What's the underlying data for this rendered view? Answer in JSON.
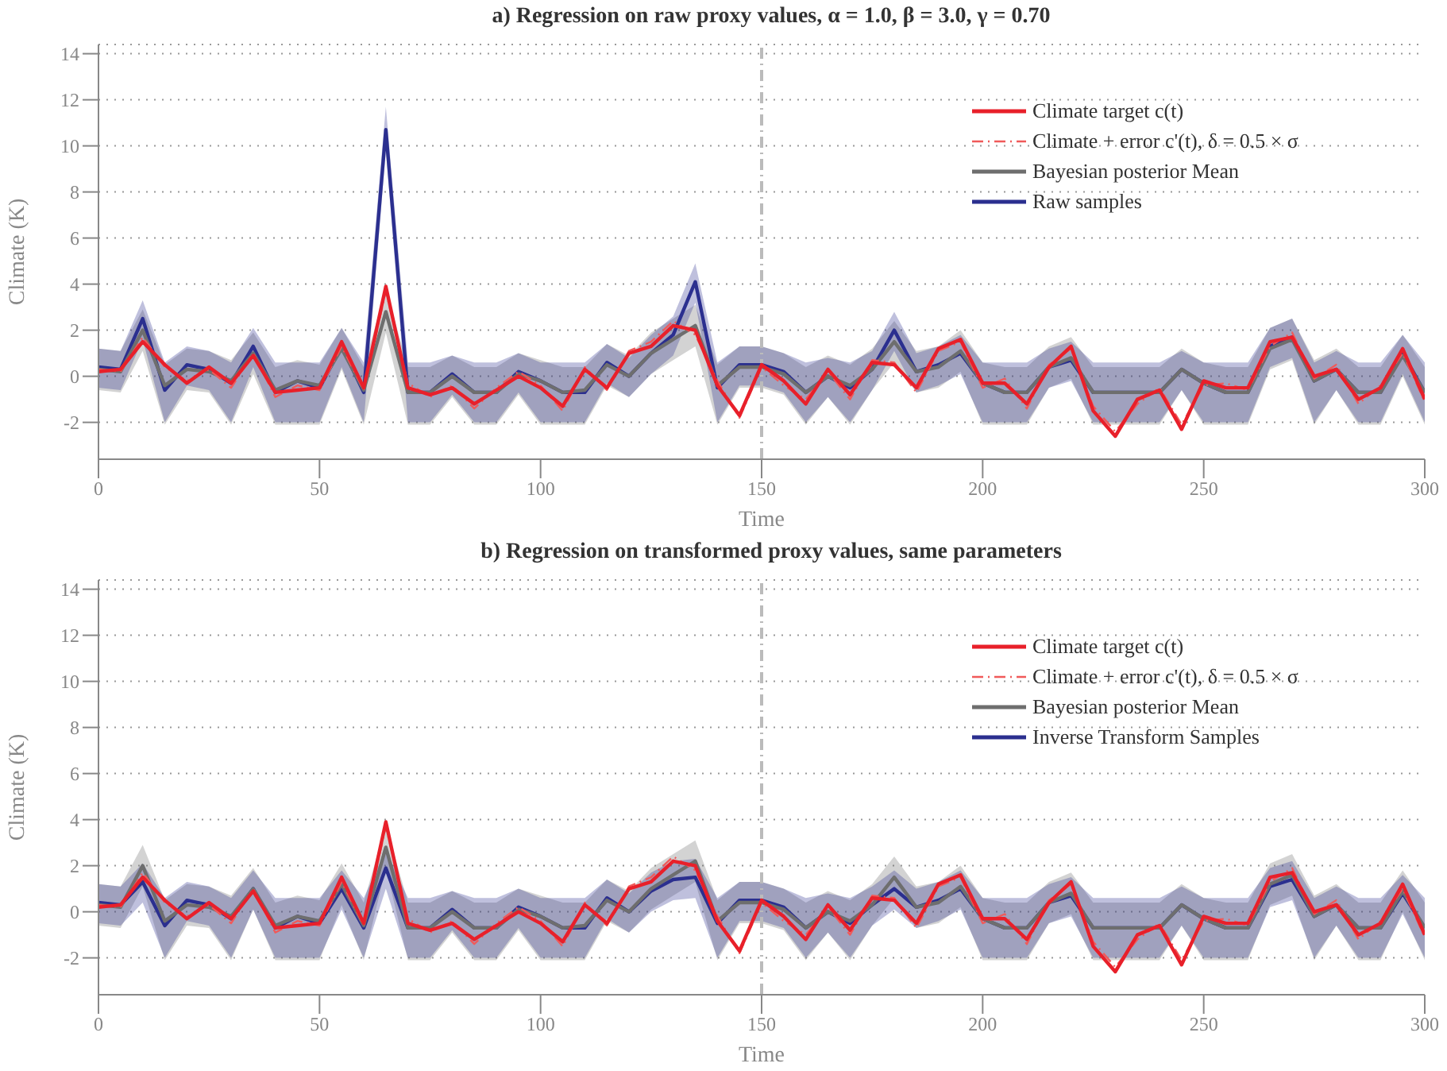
{
  "chart_data": [
    {
      "type": "line",
      "title": "a) Regression on raw proxy values, α = 1.0, β = 3.0, γ = 0.70",
      "xlabel": "Time",
      "ylabel": "Climate (K)",
      "x": [
        0,
        5,
        10,
        15,
        20,
        25,
        30,
        35,
        40,
        45,
        50,
        55,
        60,
        65,
        70,
        75,
        80,
        85,
        90,
        95,
        100,
        105,
        110,
        115,
        120,
        125,
        130,
        135,
        140,
        145,
        150,
        155,
        160,
        165,
        170,
        175,
        180,
        185,
        190,
        195,
        200,
        205,
        210,
        215,
        220,
        225,
        230,
        235,
        240,
        245,
        250,
        255,
        260,
        265,
        270,
        275,
        280,
        285,
        290,
        295,
        300
      ],
      "xlim": [
        0,
        300
      ],
      "xticks": [
        0,
        50,
        100,
        150,
        200,
        250,
        300
      ],
      "ylim": [
        -3.6,
        14.4
      ],
      "yticks": [
        -2,
        0,
        2,
        4,
        6,
        8,
        10,
        12,
        14
      ],
      "grid": "y",
      "legend": "top right",
      "ref_lines": [
        {
          "axis": "x",
          "value": 150,
          "color": "#bbbbbb",
          "line_style": "dashed"
        }
      ],
      "series": [
        {
          "name": "Climate target c(t)",
          "color": "#e8202a",
          "values": [
            0.2,
            0.3,
            1.5,
            0.5,
            -0.3,
            0.4,
            -0.3,
            0.9,
            -0.7,
            -0.6,
            -0.5,
            1.5,
            -0.5,
            3.9,
            -0.5,
            -0.8,
            -0.5,
            -1.2,
            -0.6,
            0,
            -0.5,
            -1.3,
            0.3,
            -0.5,
            1.0,
            1.3,
            2.2,
            2.0,
            -0.4,
            -1.7,
            0.5,
            -0.2,
            -1.2,
            0.3,
            -0.8,
            0.6,
            0.5,
            -0.5,
            1.2,
            1.6,
            -0.3,
            -0.3,
            -1.2,
            0.4,
            1.3,
            -1.5,
            -2.6,
            -1.0,
            -0.6,
            -2.3,
            -0.2,
            -0.5,
            -0.5,
            1.5,
            1.7,
            0.0,
            0.3,
            -1.0,
            -0.5,
            1.2,
            -1.0
          ]
        },
        {
          "name": "Climate + error c'(t),  δ = 0.5 × σ",
          "color": "#f05a5a",
          "line_style": "dashed",
          "values": [
            0.3,
            0.2,
            1.7,
            0.4,
            -0.2,
            0.3,
            -0.5,
            1.0,
            -0.9,
            -0.4,
            -0.6,
            1.3,
            -0.6,
            3.7,
            -0.3,
            -0.9,
            -0.4,
            -1.4,
            -0.5,
            0.2,
            -0.4,
            -1.5,
            0.4,
            -0.6,
            1.1,
            1.5,
            2.4,
            1.8,
            -0.2,
            -1.8,
            0.4,
            -0.4,
            -1.0,
            0.2,
            -1.0,
            0.7,
            0.6,
            -0.7,
            1.1,
            1.5,
            -0.5,
            -0.1,
            -1.4,
            0.5,
            1.2,
            -1.3,
            -2.4,
            -1.2,
            -0.5,
            -2.1,
            -0.4,
            -0.3,
            -0.6,
            1.3,
            1.9,
            -0.1,
            0.5,
            -1.2,
            -0.4,
            1.0,
            -1.1
          ]
        },
        {
          "name": "Bayesian posterior Mean",
          "color": "#6e6e6e",
          "values": [
            0.3,
            0.2,
            2.0,
            -0.4,
            0.3,
            0.2,
            -0.2,
            1.0,
            -0.6,
            -0.2,
            -0.4,
            1.2,
            -0.6,
            2.8,
            -0.7,
            -0.7,
            0,
            -0.7,
            -0.7,
            0.1,
            -0.2,
            -0.7,
            -0.6,
            0.5,
            0,
            1.0,
            1.6,
            2.2,
            -0.4,
            0.4,
            0.4,
            0.1,
            -0.7,
            0,
            -0.4,
            0.3,
            1.5,
            0.2,
            0.4,
            1.1,
            -0.3,
            -0.7,
            -0.7,
            0.4,
            0.8,
            -0.7,
            -0.7,
            -0.7,
            -0.7,
            0.3,
            -0.3,
            -0.7,
            -0.7,
            1.2,
            1.6,
            -0.2,
            0.3,
            -0.7,
            -0.7,
            0.9,
            -0.7
          ],
          "upper": [
            1.2,
            1.1,
            2.9,
            0.5,
            1.2,
            1.1,
            0.7,
            1.9,
            0.4,
            0.7,
            0.5,
            2.1,
            0.4,
            3.8,
            0.4,
            0.4,
            0.9,
            0.4,
            0.4,
            1.0,
            0.7,
            0.4,
            0.4,
            1.4,
            0.9,
            1.9,
            2.5,
            3.1,
            0.5,
            1.3,
            1.3,
            1.0,
            0.4,
            0.9,
            0.5,
            1.2,
            2.4,
            1.1,
            1.3,
            2.0,
            0.6,
            0.4,
            0.4,
            1.3,
            1.7,
            0.4,
            0.4,
            0.4,
            0.4,
            1.2,
            0.6,
            0.4,
            0.4,
            2.1,
            2.5,
            0.7,
            1.2,
            0.4,
            0.4,
            1.8,
            0.4
          ],
          "lower": [
            -0.6,
            -0.7,
            1.1,
            -2.1,
            -0.6,
            -0.7,
            -2.1,
            0.1,
            -2.1,
            -2.1,
            -2.1,
            0.3,
            -2.1,
            1.9,
            -2.1,
            -2.1,
            -0.9,
            -2.1,
            -2.1,
            -0.8,
            -2.1,
            -2.1,
            -2.1,
            -0.4,
            -0.9,
            0.1,
            0.7,
            1.3,
            -2.1,
            -0.5,
            -0.5,
            -0.8,
            -2.1,
            -0.9,
            -2.1,
            -0.6,
            0.6,
            -0.7,
            -0.5,
            0.2,
            -2.1,
            -2.1,
            -2.1,
            -0.5,
            -0.1,
            -2.1,
            -2.1,
            -2.1,
            -2.1,
            -0.6,
            -2.1,
            -2.1,
            -2.1,
            0.3,
            0.7,
            -2.1,
            -0.6,
            -2.1,
            -2.1,
            0.0,
            -2.1
          ]
        },
        {
          "name": "Raw samples",
          "color": "#2b2f8f",
          "values": [
            0.4,
            0.3,
            2.5,
            -0.6,
            0.5,
            0.3,
            -0.3,
            1.3,
            -0.7,
            -0.2,
            -0.5,
            1.3,
            -0.7,
            10.7,
            -0.7,
            -0.7,
            0.1,
            -0.7,
            -0.7,
            0.2,
            -0.2,
            -0.7,
            -0.7,
            0.6,
            0,
            1.0,
            1.8,
            4.1,
            -0.5,
            0.5,
            0.5,
            0.2,
            -0.7,
            0,
            -0.5,
            0.3,
            2.0,
            0.2,
            0.5,
            1.0,
            -0.3,
            -0.7,
            -0.7,
            0.4,
            0.7,
            -0.7,
            -0.7,
            -0.7,
            -0.7,
            0.3,
            -0.3,
            -0.7,
            -0.7,
            1.3,
            1.7,
            -0.2,
            0.3,
            -0.7,
            -0.7,
            1.0,
            -0.7
          ],
          "upper": [
            1.2,
            1.1,
            3.3,
            0.6,
            1.3,
            1.1,
            0.6,
            2.1,
            0.6,
            0.6,
            0.6,
            2.1,
            0.6,
            11.7,
            0.6,
            0.6,
            0.9,
            0.6,
            0.6,
            1.0,
            0.6,
            0.6,
            0.6,
            1.4,
            0.8,
            1.8,
            2.6,
            4.9,
            0.6,
            1.3,
            1.3,
            1.0,
            0.6,
            0.8,
            0.6,
            1.1,
            2.8,
            1.0,
            1.3,
            1.8,
            0.6,
            0.6,
            0.6,
            1.2,
            1.5,
            0.6,
            0.6,
            0.6,
            0.6,
            1.1,
            0.6,
            0.6,
            0.6,
            2.1,
            2.5,
            0.6,
            1.1,
            0.6,
            0.6,
            1.8,
            0.6
          ],
          "lower": [
            -0.5,
            -0.6,
            1.6,
            -2.0,
            -0.4,
            -0.6,
            -2.0,
            0.4,
            -2.0,
            -2.0,
            -2.0,
            0.4,
            -2.0,
            9.8,
            -2.0,
            -2.0,
            -0.8,
            -2.0,
            -2.0,
            -0.7,
            -2.0,
            -2.0,
            -2.0,
            -0.3,
            -0.9,
            0.1,
            0.9,
            3.2,
            -2.0,
            -0.4,
            -0.4,
            -0.7,
            -2.0,
            -0.9,
            -2.0,
            -0.6,
            1.1,
            -0.7,
            -0.4,
            0.1,
            -2.0,
            -2.0,
            -2.0,
            -0.5,
            -0.2,
            -2.0,
            -2.0,
            -2.0,
            -2.0,
            -0.6,
            -2.0,
            -2.0,
            -2.0,
            0.4,
            0.8,
            -2.0,
            -0.6,
            -2.0,
            -2.0,
            0.1,
            -2.0
          ]
        }
      ]
    },
    {
      "type": "line",
      "title": "b) Regression on transformed proxy values, same parameters",
      "xlabel": "Time",
      "ylabel": "Climate (K)",
      "x": [
        0,
        5,
        10,
        15,
        20,
        25,
        30,
        35,
        40,
        45,
        50,
        55,
        60,
        65,
        70,
        75,
        80,
        85,
        90,
        95,
        100,
        105,
        110,
        115,
        120,
        125,
        130,
        135,
        140,
        145,
        150,
        155,
        160,
        165,
        170,
        175,
        180,
        185,
        190,
        195,
        200,
        205,
        210,
        215,
        220,
        225,
        230,
        235,
        240,
        245,
        250,
        255,
        260,
        265,
        270,
        275,
        280,
        285,
        290,
        295,
        300
      ],
      "xlim": [
        0,
        300
      ],
      "xticks": [
        0,
        50,
        100,
        150,
        200,
        250,
        300
      ],
      "ylim": [
        -3.6,
        14.4
      ],
      "yticks": [
        -2,
        0,
        2,
        4,
        6,
        8,
        10,
        12,
        14
      ],
      "grid": "y",
      "legend": "top right",
      "ref_lines": [
        {
          "axis": "x",
          "value": 150,
          "color": "#bbbbbb",
          "line_style": "dashed"
        }
      ],
      "series": [
        {
          "name": "Climate target c(t)",
          "color": "#e8202a",
          "values": [
            0.2,
            0.3,
            1.5,
            0.5,
            -0.3,
            0.4,
            -0.3,
            0.9,
            -0.7,
            -0.6,
            -0.5,
            1.5,
            -0.5,
            3.9,
            -0.5,
            -0.8,
            -0.5,
            -1.2,
            -0.6,
            0,
            -0.5,
            -1.3,
            0.3,
            -0.5,
            1.0,
            1.3,
            2.2,
            2.0,
            -0.4,
            -1.7,
            0.5,
            -0.2,
            -1.2,
            0.3,
            -0.8,
            0.6,
            0.5,
            -0.5,
            1.2,
            1.6,
            -0.3,
            -0.3,
            -1.2,
            0.4,
            1.3,
            -1.5,
            -2.6,
            -1.0,
            -0.6,
            -2.3,
            -0.2,
            -0.5,
            -0.5,
            1.5,
            1.7,
            0.0,
            0.3,
            -1.0,
            -0.5,
            1.2,
            -1.0
          ]
        },
        {
          "name": "Climate + error c'(t),  δ = 0.5 × σ",
          "color": "#f05a5a",
          "line_style": "dashed",
          "values": [
            0.3,
            0.2,
            1.7,
            0.4,
            -0.2,
            0.3,
            -0.5,
            1.0,
            -0.9,
            -0.4,
            -0.6,
            1.3,
            -0.6,
            3.7,
            -0.3,
            -0.9,
            -0.4,
            -1.4,
            -0.5,
            0.2,
            -0.4,
            -1.5,
            0.4,
            -0.6,
            1.1,
            1.5,
            2.4,
            1.8,
            -0.2,
            -1.8,
            0.4,
            -0.4,
            -1.0,
            0.2,
            -1.0,
            0.7,
            0.6,
            -0.7,
            1.1,
            1.5,
            -0.5,
            -0.1,
            -1.4,
            0.5,
            1.2,
            -1.3,
            -2.4,
            -1.2,
            -0.5,
            -2.1,
            -0.4,
            -0.3,
            -0.6,
            1.3,
            1.9,
            -0.1,
            0.5,
            -1.2,
            -0.4,
            1.0,
            -1.1
          ]
        },
        {
          "name": "Bayesian posterior Mean",
          "color": "#6e6e6e",
          "values": [
            0.3,
            0.2,
            2.0,
            -0.4,
            0.3,
            0.2,
            -0.2,
            1.0,
            -0.6,
            -0.2,
            -0.4,
            1.2,
            -0.6,
            2.8,
            -0.7,
            -0.7,
            0,
            -0.7,
            -0.7,
            0.1,
            -0.2,
            -0.7,
            -0.6,
            0.5,
            0,
            1.0,
            1.6,
            2.2,
            -0.4,
            0.4,
            0.4,
            0.1,
            -0.7,
            0,
            -0.4,
            0.3,
            1.5,
            0.2,
            0.4,
            1.1,
            -0.3,
            -0.7,
            -0.7,
            0.4,
            0.8,
            -0.7,
            -0.7,
            -0.7,
            -0.7,
            0.3,
            -0.3,
            -0.7,
            -0.7,
            1.2,
            1.6,
            -0.2,
            0.3,
            -0.7,
            -0.7,
            0.9,
            -0.7
          ],
          "upper": [
            1.2,
            1.1,
            2.9,
            0.5,
            1.2,
            1.1,
            0.7,
            1.9,
            0.4,
            0.7,
            0.5,
            2.1,
            0.4,
            3.8,
            0.4,
            0.4,
            0.9,
            0.4,
            0.4,
            1.0,
            0.7,
            0.4,
            0.4,
            1.4,
            0.9,
            1.9,
            2.5,
            3.1,
            0.5,
            1.3,
            1.3,
            1.0,
            0.4,
            0.9,
            0.5,
            1.2,
            2.4,
            1.1,
            1.3,
            2.0,
            0.6,
            0.4,
            0.4,
            1.3,
            1.7,
            0.4,
            0.4,
            0.4,
            0.4,
            1.2,
            0.6,
            0.4,
            0.4,
            2.1,
            2.5,
            0.7,
            1.2,
            0.4,
            0.4,
            1.8,
            0.4
          ],
          "lower": [
            -0.6,
            -0.7,
            1.1,
            -2.1,
            -0.6,
            -0.7,
            -2.1,
            0.1,
            -2.1,
            -2.1,
            -2.1,
            0.3,
            -2.1,
            1.9,
            -2.1,
            -2.1,
            -0.9,
            -2.1,
            -2.1,
            -0.8,
            -2.1,
            -2.1,
            -2.1,
            -0.4,
            -0.9,
            0.1,
            0.7,
            1.3,
            -2.1,
            -0.5,
            -0.5,
            -0.8,
            -2.1,
            -0.9,
            -2.1,
            -0.6,
            0.6,
            -0.7,
            -0.5,
            0.2,
            -2.1,
            -2.1,
            -2.1,
            -0.5,
            -0.1,
            -2.1,
            -2.1,
            -2.1,
            -2.1,
            -0.6,
            -2.1,
            -2.1,
            -2.1,
            0.3,
            0.7,
            -2.1,
            -0.6,
            -2.1,
            -2.1,
            0.0,
            -2.1
          ]
        },
        {
          "name": "Inverse Transform Samples",
          "color": "#2b2f8f",
          "values": [
            0.4,
            0.3,
            1.3,
            -0.6,
            0.5,
            0.3,
            -0.3,
            1.0,
            -0.7,
            -0.2,
            -0.5,
            1.0,
            -0.7,
            1.9,
            -0.7,
            -0.7,
            0.1,
            -0.7,
            -0.7,
            0.2,
            -0.2,
            -0.7,
            -0.7,
            0.6,
            0,
            0.9,
            1.4,
            1.5,
            -0.5,
            0.5,
            0.5,
            0.2,
            -0.7,
            0,
            -0.5,
            0.3,
            1.0,
            0.2,
            0.5,
            1.0,
            -0.3,
            -0.7,
            -0.7,
            0.4,
            0.7,
            -0.7,
            -0.7,
            -0.7,
            -0.7,
            0.3,
            -0.3,
            -0.7,
            -0.7,
            1.1,
            1.4,
            -0.2,
            0.3,
            -0.7,
            -0.7,
            0.8,
            -0.7
          ],
          "upper": [
            1.2,
            1.1,
            2.1,
            0.6,
            1.3,
            1.1,
            0.6,
            1.8,
            0.6,
            0.6,
            0.6,
            1.8,
            0.6,
            2.7,
            0.6,
            0.6,
            0.9,
            0.6,
            0.6,
            1.0,
            0.6,
            0.6,
            0.6,
            1.4,
            0.8,
            1.7,
            2.2,
            2.3,
            0.6,
            1.3,
            1.3,
            1.0,
            0.6,
            0.8,
            0.6,
            1.1,
            1.8,
            1.0,
            1.3,
            1.8,
            0.6,
            0.6,
            0.6,
            1.2,
            1.5,
            0.6,
            0.6,
            0.6,
            0.6,
            1.1,
            0.6,
            0.6,
            0.6,
            1.9,
            2.2,
            0.6,
            1.1,
            0.6,
            0.6,
            1.6,
            0.6
          ],
          "lower": [
            -0.5,
            -0.6,
            0.4,
            -2.0,
            -0.4,
            -0.6,
            -2.0,
            0.1,
            -2.0,
            -2.0,
            -2.0,
            0.1,
            -2.0,
            1.0,
            -2.0,
            -2.0,
            -0.8,
            -2.0,
            -2.0,
            -0.7,
            -2.0,
            -2.0,
            -2.0,
            -0.3,
            -0.9,
            0.0,
            0.5,
            0.6,
            -2.0,
            -0.4,
            -0.4,
            -0.7,
            -2.0,
            -0.9,
            -2.0,
            -0.6,
            0.1,
            -0.7,
            -0.4,
            0.1,
            -2.0,
            -2.0,
            -2.0,
            -0.5,
            -0.2,
            -2.0,
            -2.0,
            -2.0,
            -2.0,
            -0.6,
            -2.0,
            -2.0,
            -2.0,
            0.2,
            0.5,
            -2.0,
            -0.6,
            -2.0,
            -2.0,
            -0.1,
            -2.0
          ]
        }
      ]
    }
  ]
}
